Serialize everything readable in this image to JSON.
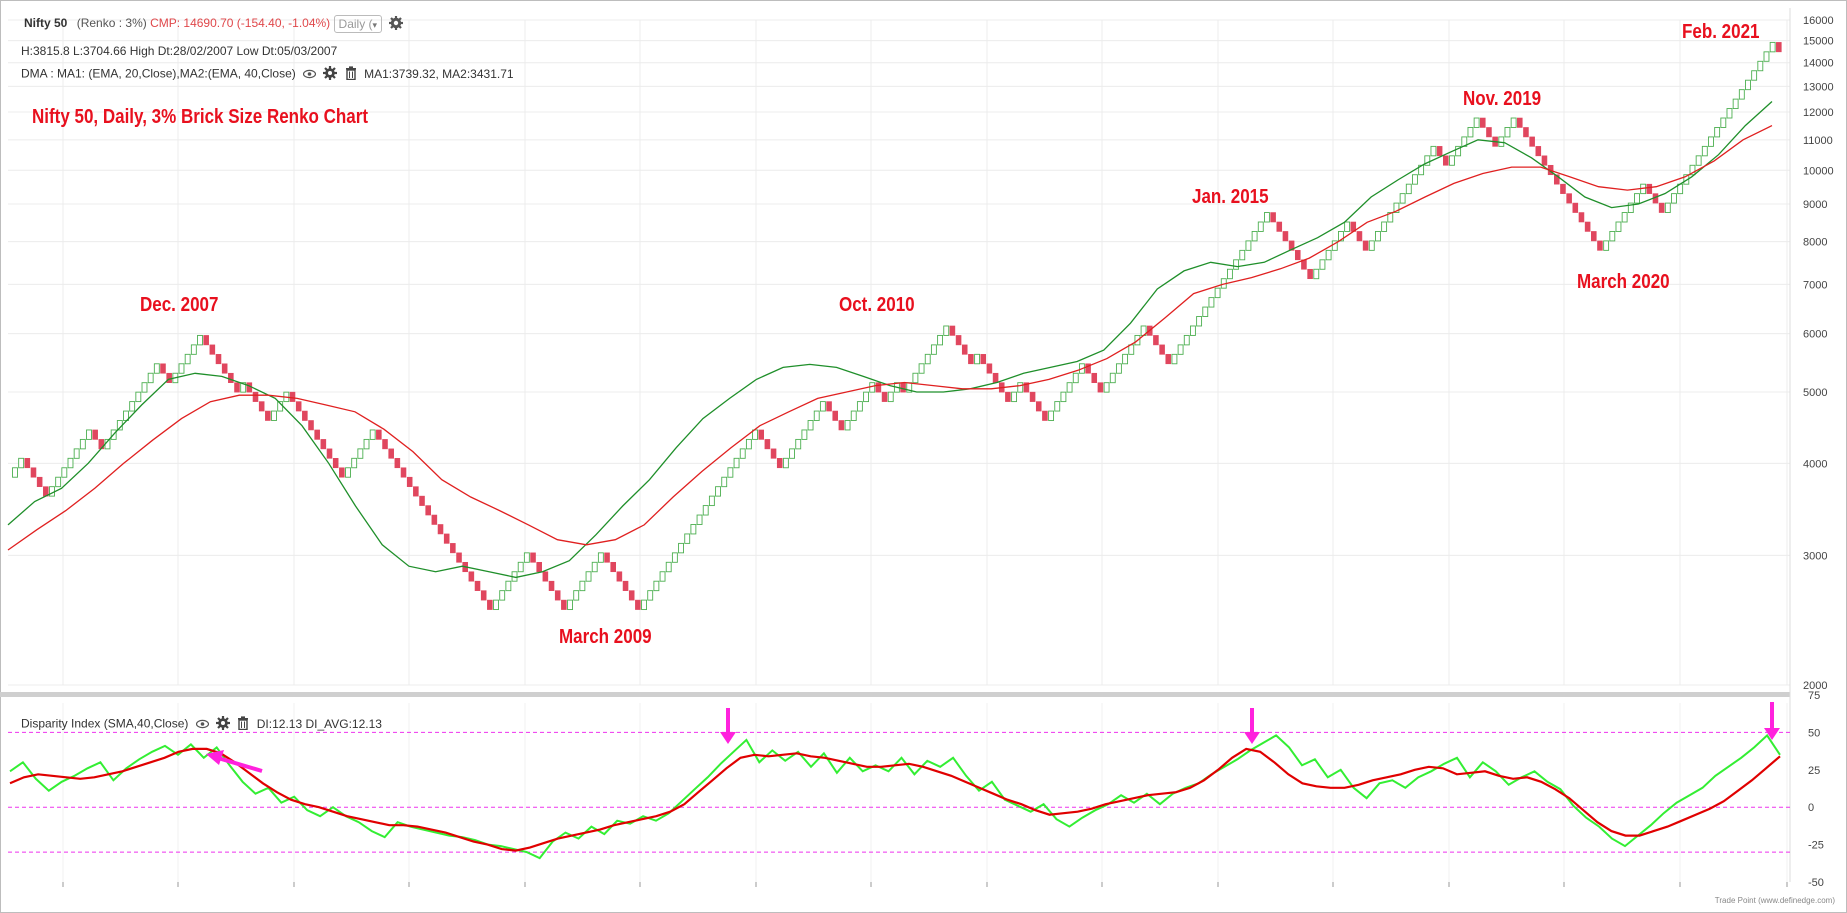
{
  "header": {
    "symbol": "Nifty 50",
    "type": "(Renko : 3%)",
    "cmp": "CMP: 14690.70 (-154.40, -1.04%)",
    "interval": "Daily (",
    "hl_line": "H:3815.8 L:3704.66 High Dt:28/02/2007 Low Dt:05/03/2007",
    "dma_label": "DMA : MA1: (EMA, 20,Close),MA2:(EMA, 40,Close)",
    "dma_values": "MA1:3739.32, MA2:3431.71",
    "di_label": "Disparity Index (SMA,40,Close)",
    "di_values": "DI:12.13 DI_AVG:12.13"
  },
  "annotations": {
    "title": "Nifty 50, Daily, 3% Brick Size Renko Chart",
    "dec2007": "Dec. 2007",
    "mar2009": "March 2009",
    "oct2010": "Oct. 2010",
    "jan2015": "Jan. 2015",
    "nov2019": "Nov. 2019",
    "mar2020": "March 2020",
    "feb2021": "Feb. 2021"
  },
  "footer": "Trade Point (www.definedge.com)",
  "colors": {
    "up_brick": "#4caf50",
    "down_brick": "#e0465e",
    "ma1": "#1f8f2a",
    "ma2": "#e02020",
    "di": "#33ee33",
    "di_avg": "#e00000",
    "guide": "#ee33ee",
    "arrow": "#ff22dd"
  },
  "chart_data": [
    {
      "type": "renko",
      "scale": "log",
      "y_ticks": [
        2000,
        3000,
        4000,
        5000,
        6000,
        7000,
        8000,
        9000,
        10000,
        11000,
        12000,
        13000,
        14000,
        15000,
        16000
      ],
      "y_range": [
        2000,
        16000
      ],
      "brick_size_pct": 3,
      "series": [
        {
          "name": "Renko",
          "pivots": [
            {
              "v": 3830,
              "dir": "start"
            },
            {
              "v": 4100,
              "dir": "up"
            },
            {
              "v": 3640,
              "dir": "down"
            },
            {
              "v": 4500,
              "dir": "up"
            },
            {
              "v": 4200,
              "dir": "down"
            },
            {
              "v": 5500,
              "dir": "up"
            },
            {
              "v": 5200,
              "dir": "down"
            },
            {
              "v": 6040,
              "dir": "up"
            },
            {
              "v": 5000,
              "dir": "down"
            },
            {
              "v": 5200,
              "dir": "up"
            },
            {
              "v": 4600,
              "dir": "down"
            },
            {
              "v": 5000,
              "dir": "up"
            },
            {
              "v": 3850,
              "dir": "down"
            },
            {
              "v": 4400,
              "dir": "up"
            },
            {
              "v": 2520,
              "dir": "down"
            },
            {
              "v": 3050,
              "dir": "up"
            },
            {
              "v": 2520,
              "dir": "down"
            },
            {
              "v": 3050,
              "dir": "up"
            },
            {
              "v": 2520,
              "dir": "down"
            },
            {
              "v": 4470,
              "dir": "up"
            },
            {
              "v": 4000,
              "dir": "down"
            },
            {
              "v": 4800,
              "dir": "up"
            },
            {
              "v": 4500,
              "dir": "down"
            },
            {
              "v": 5200,
              "dir": "up"
            },
            {
              "v": 4900,
              "dir": "down"
            },
            {
              "v": 5200,
              "dir": "up"
            },
            {
              "v": 5000,
              "dir": "down"
            },
            {
              "v": 6200,
              "dir": "up"
            },
            {
              "v": 5400,
              "dir": "down"
            },
            {
              "v": 5550,
              "dir": "up"
            },
            {
              "v": 4900,
              "dir": "down"
            },
            {
              "v": 5200,
              "dir": "up"
            },
            {
              "v": 4600,
              "dir": "down"
            },
            {
              "v": 5500,
              "dir": "up"
            },
            {
              "v": 5000,
              "dir": "down"
            },
            {
              "v": 6100,
              "dir": "up"
            },
            {
              "v": 5400,
              "dir": "down"
            },
            {
              "v": 8800,
              "dir": "up"
            },
            {
              "v": 7200,
              "dir": "down"
            },
            {
              "v": 8600,
              "dir": "up"
            },
            {
              "v": 7900,
              "dir": "down"
            },
            {
              "v": 10900,
              "dir": "up"
            },
            {
              "v": 10100,
              "dir": "down"
            },
            {
              "v": 11900,
              "dir": "up"
            },
            {
              "v": 10700,
              "dir": "down"
            },
            {
              "v": 11900,
              "dir": "up"
            },
            {
              "v": 7700,
              "dir": "down"
            },
            {
              "v": 9700,
              "dir": "up"
            },
            {
              "v": 8800,
              "dir": "down"
            },
            {
              "v": 15000,
              "dir": "up"
            },
            {
              "v": 14300,
              "dir": "down"
            }
          ]
        },
        {
          "name": "MA1",
          "values": [
            3300,
            3550,
            3700,
            4000,
            4400,
            4800,
            5200,
            5300,
            5250,
            5100,
            4900,
            4500,
            4000,
            3500,
            3100,
            2900,
            2850,
            2900,
            2850,
            2800,
            2850,
            2950,
            3200,
            3500,
            3800,
            4200,
            4600,
            4900,
            5200,
            5400,
            5450,
            5400,
            5250,
            5100,
            5000,
            5000,
            5050,
            5150,
            5300,
            5400,
            5500,
            5700,
            6200,
            6900,
            7300,
            7500,
            7400,
            7500,
            7800,
            8100,
            8500,
            9200,
            9700,
            10200,
            10600,
            11000,
            10900,
            10400,
            9800,
            9200,
            8900,
            9000,
            9300,
            9800,
            10500,
            11500,
            12400
          ]
        },
        {
          "name": "MA2",
          "values": [
            3050,
            3250,
            3450,
            3700,
            4000,
            4300,
            4600,
            4850,
            4950,
            4950,
            4900,
            4800,
            4700,
            4450,
            4150,
            3800,
            3600,
            3450,
            3300,
            3150,
            3100,
            3150,
            3300,
            3600,
            3900,
            4200,
            4500,
            4700,
            4900,
            5000,
            5100,
            5150,
            5100,
            5050,
            5050,
            5100,
            5200,
            5350,
            5550,
            5850,
            6300,
            6800,
            7000,
            7150,
            7350,
            7600,
            8000,
            8500,
            8800,
            9200,
            9600,
            9900,
            10100,
            10100,
            9800,
            9500,
            9400,
            9500,
            9800,
            10300,
            11000,
            11500
          ]
        }
      ]
    },
    {
      "type": "line",
      "y_ticks": [
        75,
        50,
        25,
        0,
        -25,
        -50
      ],
      "y_range": [
        -50,
        75
      ],
      "guide_levels": [
        50,
        0,
        -30
      ],
      "series": [
        {
          "name": "DI",
          "values": [
            24,
            30,
            19,
            11,
            17,
            21,
            26,
            30,
            18,
            26,
            32,
            37,
            41,
            35,
            42,
            33,
            40,
            28,
            17,
            9,
            13,
            3,
            7,
            -2,
            -6,
            0,
            -6,
            -10,
            -16,
            -20,
            -10,
            -13,
            -15,
            -17,
            -19,
            -20,
            -22,
            -25,
            -26,
            -28,
            -30,
            -34,
            -23,
            -17,
            -21,
            -13,
            -18,
            -9,
            -11,
            -6,
            -9,
            -4,
            4,
            12,
            20,
            29,
            37,
            45,
            30,
            38,
            31,
            37,
            27,
            36,
            23,
            33,
            24,
            28,
            24,
            33,
            22,
            31,
            27,
            33,
            21,
            11,
            17,
            5,
            1,
            -3,
            2,
            -8,
            -13,
            -7,
            -2,
            2,
            8,
            3,
            9,
            2,
            9,
            13,
            16,
            22,
            27,
            32,
            38,
            43,
            48,
            40,
            28,
            32,
            20,
            25,
            13,
            6,
            16,
            18,
            13,
            20,
            24,
            29,
            33,
            20,
            30,
            24,
            15,
            20,
            24,
            17,
            12,
            1,
            -7,
            -13,
            -21,
            -26,
            -19,
            -12,
            -4,
            3,
            8,
            13,
            21,
            27,
            33,
            40,
            48,
            35
          ]
        },
        {
          "name": "DI_AVG",
          "values": [
            16,
            20,
            22,
            21,
            20,
            19,
            20,
            22,
            24,
            27,
            30,
            33,
            37,
            39,
            39,
            36,
            30,
            23,
            16,
            10,
            5,
            2,
            0,
            -3,
            -6,
            -8,
            -10,
            -12,
            -12,
            -13,
            -15,
            -17,
            -20,
            -23,
            -25,
            -28,
            -29,
            -27,
            -24,
            -21,
            -19,
            -17,
            -15,
            -12,
            -10,
            -8,
            -6,
            -3,
            2,
            10,
            18,
            26,
            33,
            35,
            34,
            35,
            36,
            34,
            33,
            31,
            29,
            27,
            27,
            28,
            29,
            27,
            24,
            21,
            17,
            13,
            9,
            5,
            2,
            -2,
            -5,
            -4,
            -3,
            -1,
            2,
            4,
            6,
            8,
            9,
            10,
            13,
            18,
            25,
            33,
            39,
            37,
            30,
            22,
            16,
            14,
            13,
            13,
            15,
            18,
            20,
            22,
            25,
            27,
            26,
            22,
            23,
            24,
            21,
            19,
            20,
            17,
            12,
            6,
            -2,
            -10,
            -16,
            -19,
            -19,
            -16,
            -13,
            -9,
            -5,
            -1,
            4,
            11,
            18,
            26,
            34
          ]
        }
      ]
    }
  ]
}
